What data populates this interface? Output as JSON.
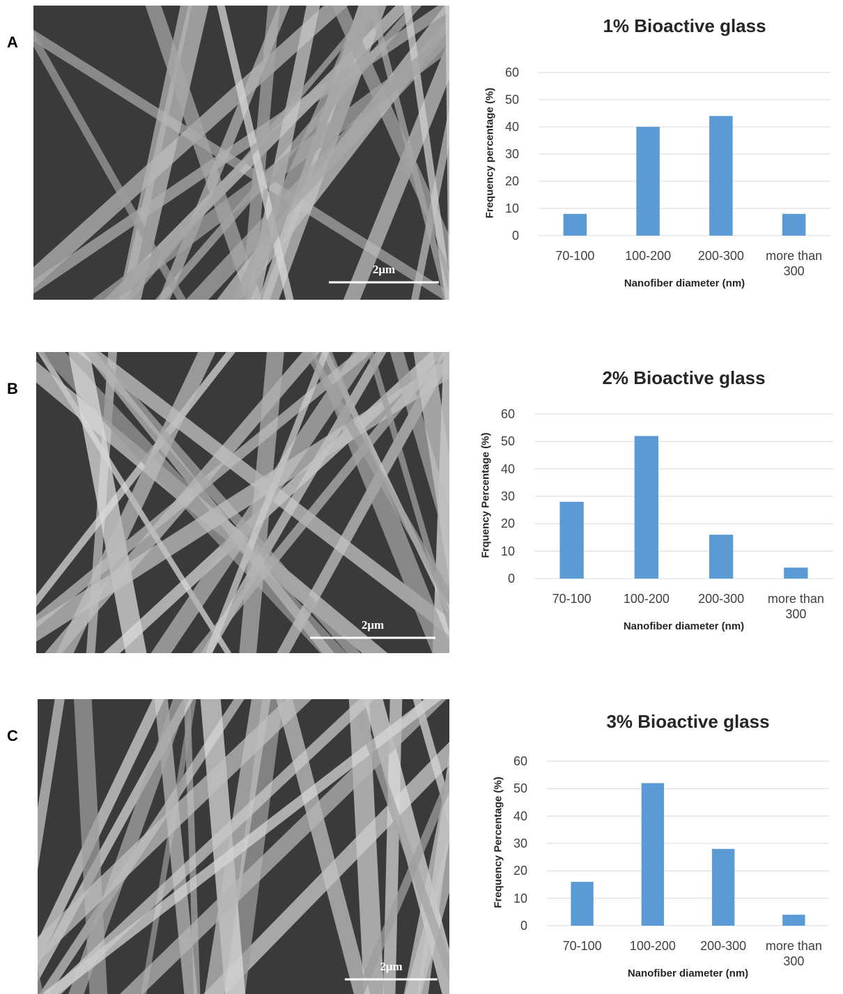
{
  "panels": [
    {
      "label": "A",
      "scale_bar": "2μm"
    },
    {
      "label": "B",
      "scale_bar": "2μm"
    },
    {
      "label": "C",
      "scale_bar": "2μm"
    }
  ],
  "chart_data": [
    {
      "type": "bar",
      "title": "1% Bioactive glass",
      "x_label": "Nanofiber diameter (nm)",
      "y_label": "Frequency percentage (%)",
      "categories": [
        "70-100",
        "100-200",
        "200-300",
        "more than 300"
      ],
      "values": [
        8,
        40,
        44,
        8
      ],
      "color": "#5b9bd5",
      "ylim": [
        0,
        60
      ],
      "yticks": [
        0,
        10,
        20,
        30,
        40,
        50,
        60
      ],
      "grid": true
    },
    {
      "type": "bar",
      "title": "2% Bioactive glass",
      "x_label": "Nanofiber diameter (nm)",
      "y_label": "Frquency Percentage (%)",
      "categories": [
        "70-100",
        "100-200",
        "200-300",
        "more than 300"
      ],
      "values": [
        28,
        52,
        16,
        4
      ],
      "color": "#5b9bd5",
      "ylim": [
        0,
        60
      ],
      "yticks": [
        0,
        10,
        20,
        30,
        40,
        50,
        60
      ],
      "grid": true
    },
    {
      "type": "bar",
      "title": "3% Bioactive glass",
      "x_label": "Nanofiber diameter (nm)",
      "y_label": "Frequency Percentage (%)",
      "categories": [
        "70-100",
        "100-200",
        "200-300",
        "more than 300"
      ],
      "values": [
        16,
        52,
        28,
        4
      ],
      "color": "#5b9bd5",
      "ylim": [
        0,
        60
      ],
      "yticks": [
        0,
        10,
        20,
        30,
        40,
        50,
        60
      ],
      "grid": true
    }
  ]
}
